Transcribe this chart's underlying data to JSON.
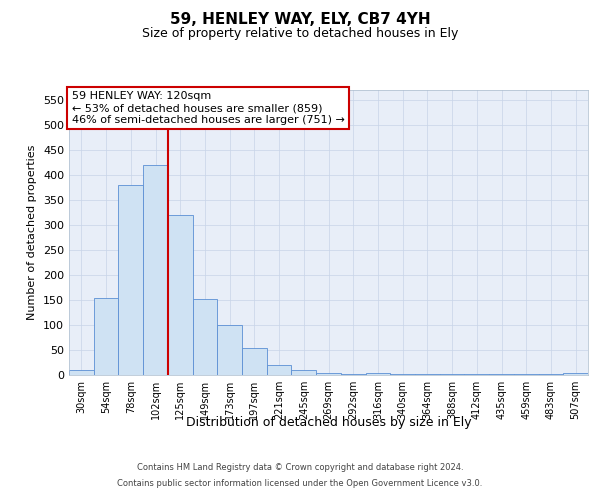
{
  "title": "59, HENLEY WAY, ELY, CB7 4YH",
  "subtitle": "Size of property relative to detached houses in Ely",
  "xlabel": "Distribution of detached houses by size in Ely",
  "ylabel": "Number of detached properties",
  "footer_line1": "Contains HM Land Registry data © Crown copyright and database right 2024.",
  "footer_line2": "Contains public sector information licensed under the Open Government Licence v3.0.",
  "bar_categories": [
    "30sqm",
    "54sqm",
    "78sqm",
    "102sqm",
    "125sqm",
    "149sqm",
    "173sqm",
    "197sqm",
    "221sqm",
    "245sqm",
    "269sqm",
    "292sqm",
    "316sqm",
    "340sqm",
    "364sqm",
    "388sqm",
    "412sqm",
    "435sqm",
    "459sqm",
    "483sqm",
    "507sqm"
  ],
  "bar_values": [
    10,
    155,
    380,
    420,
    320,
    153,
    100,
    55,
    20,
    10,
    5,
    2,
    5,
    2,
    2,
    2,
    2,
    2,
    2,
    2,
    5
  ],
  "bar_color": "#cfe2f3",
  "bar_edge_color": "#5b8fd4",
  "grid_color": "#c8d4e8",
  "background_color": "#e8eef8",
  "vline_color": "#cc0000",
  "vline_pos": 3.5,
  "annotation_line1": "59 HENLEY WAY: 120sqm",
  "annotation_line2": "← 53% of detached houses are smaller (859)",
  "annotation_line3": "46% of semi-detached houses are larger (751) →",
  "annotation_box_edgecolor": "#cc0000",
  "ylim": [
    0,
    570
  ],
  "yticks": [
    0,
    50,
    100,
    150,
    200,
    250,
    300,
    350,
    400,
    450,
    500,
    550
  ],
  "title_fontsize": 11,
  "subtitle_fontsize": 9,
  "ylabel_fontsize": 8,
  "xlabel_fontsize": 9,
  "tick_fontsize": 7,
  "ann_fontsize": 8,
  "footer_fontsize": 6
}
